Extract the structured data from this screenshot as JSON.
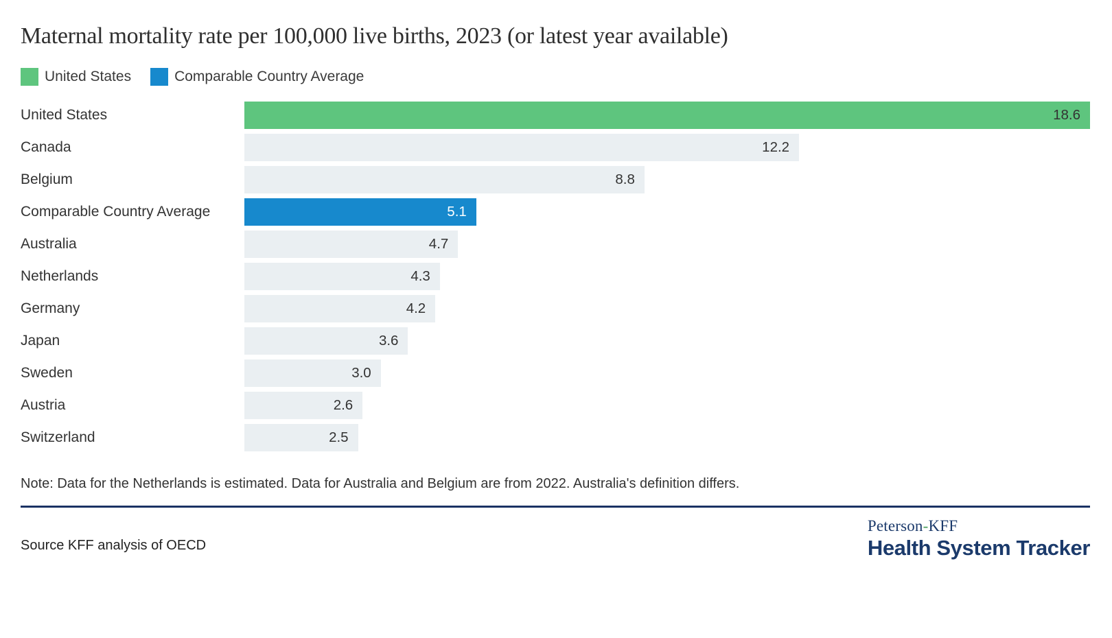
{
  "title": "Maternal mortality rate per 100,000 live births, 2023 (or latest year available)",
  "legend": [
    {
      "label": "United States",
      "color": "#5ec57e"
    },
    {
      "label": "Comparable Country Average",
      "color": "#1789cd"
    }
  ],
  "chart_data": {
    "type": "bar",
    "orientation": "horizontal",
    "title": "Maternal mortality rate per 100,000 live births, 2023 (or latest year available)",
    "categories": [
      "United States",
      "Canada",
      "Belgium",
      "Comparable Country Average",
      "Australia",
      "Netherlands",
      "Germany",
      "Japan",
      "Sweden",
      "Austria",
      "Switzerland"
    ],
    "values": [
      18.6,
      12.2,
      8.8,
      5.1,
      4.7,
      4.3,
      4.2,
      3.6,
      3.0,
      2.6,
      2.5
    ],
    "value_labels": [
      "18.6",
      "12.2",
      "8.8",
      "5.1",
      "4.7",
      "4.3",
      "4.2",
      "3.6",
      "3.0",
      "2.6",
      "2.5"
    ],
    "bar_colors": [
      "#5ec57e",
      "#eaeff2",
      "#eaeff2",
      "#1789cd",
      "#eaeff2",
      "#eaeff2",
      "#eaeff2",
      "#eaeff2",
      "#eaeff2",
      "#eaeff2",
      "#eaeff2"
    ],
    "value_text_colors": [
      "#333333",
      "#333333",
      "#333333",
      "#ffffff",
      "#333333",
      "#333333",
      "#333333",
      "#333333",
      "#333333",
      "#333333",
      "#333333"
    ],
    "xlim": [
      0,
      18.6
    ],
    "grid": false,
    "legend_position": "top-left",
    "value_label_position": "inside-end"
  },
  "note": "Note: Data for the Netherlands is estimated. Data for Australia and Belgium are from 2022. Australia's definition differs.",
  "source": "Source KFF analysis of OECD",
  "logo": {
    "brand_left": "Peterson",
    "brand_sep": "-",
    "brand_right": "KFF",
    "name": "Health System Tracker"
  }
}
